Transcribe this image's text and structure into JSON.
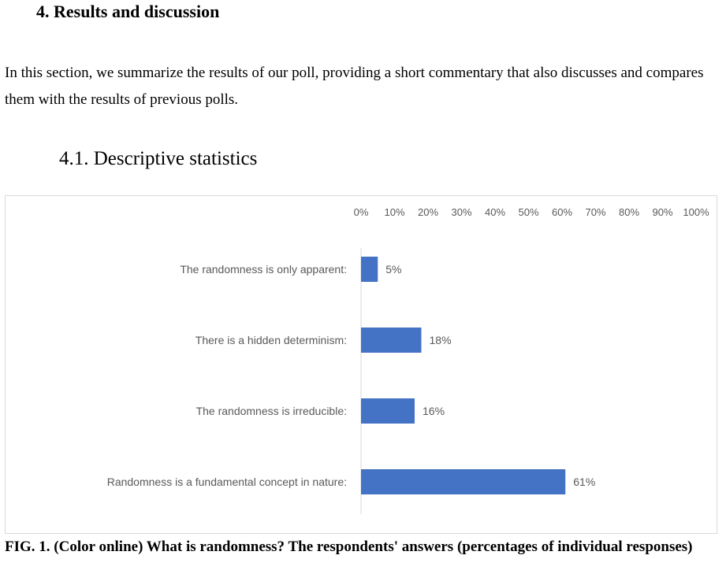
{
  "document": {
    "section_heading": "4.  Results and discussion",
    "intro_paragraph": "In this section, we summarize the results of our poll, providing a short commentary that also discusses and compares them with the results of previous polls.",
    "subsection_heading": "4.1.  Descriptive statistics",
    "caption": "FIG. 1. (Color online) What is randomness? The respondents' answers (percentages of individual responses)"
  },
  "chart_data": {
    "type": "bar",
    "orientation": "horizontal",
    "title": "",
    "xlabel": "",
    "ylabel": "",
    "categories": [
      "The randomness is only apparent:",
      "There is a hidden determinism:",
      "The randomness is irreducible:",
      "Randomness is a fundamental concept in nature:"
    ],
    "values": [
      5,
      18,
      16,
      61
    ],
    "data_labels": [
      "5%",
      "18%",
      "16%",
      "61%"
    ],
    "xlim": [
      0,
      100
    ],
    "x_ticks": [
      "0%",
      "10%",
      "20%",
      "30%",
      "40%",
      "50%",
      "60%",
      "70%",
      "80%",
      "90%",
      "100%"
    ],
    "x_axis_position": "top",
    "grid": false,
    "legend": "none",
    "bar_color": "#4472c4",
    "axis_color": "#d9d9d9",
    "label_color": "#595959"
  }
}
